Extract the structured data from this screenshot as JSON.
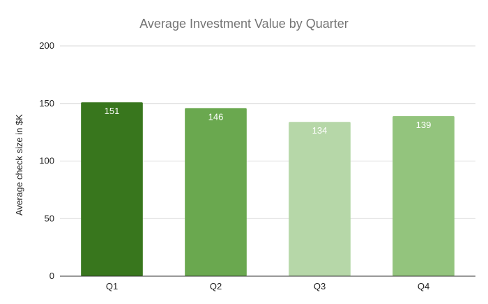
{
  "chart_data": {
    "type": "bar",
    "title": "Average Investment Value by Quarter",
    "xlabel": "",
    "ylabel": "Average check size in $K",
    "categories": [
      "Q1",
      "Q2",
      "Q3",
      "Q4"
    ],
    "values": [
      151,
      146,
      134,
      139
    ],
    "data_labels": [
      "151",
      "146",
      "134",
      "139"
    ],
    "colors": [
      "#38761d",
      "#6aa84f",
      "#b6d7a8",
      "#93c47d"
    ],
    "ylim": [
      0,
      200
    ],
    "yticks": [
      0,
      50,
      100,
      150,
      200
    ],
    "grid": true,
    "legend": "none"
  }
}
